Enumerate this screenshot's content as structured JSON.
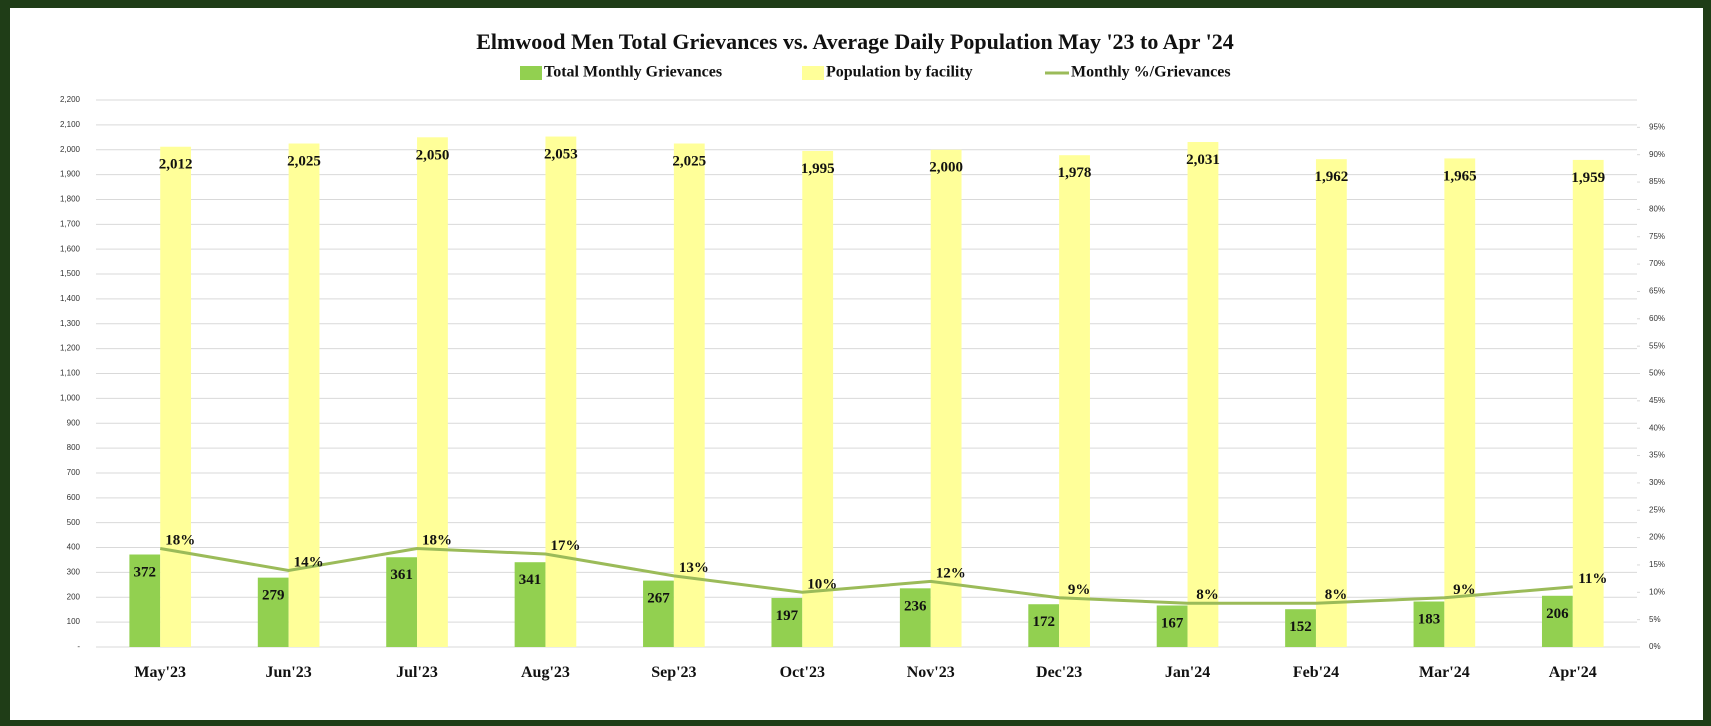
{
  "chart_data": {
    "type": "bar",
    "title": "Elmwood Men Total Grievances vs. Average Daily Population May '23 to Apr '24",
    "categories": [
      "May'23",
      "Jun'23",
      "Jul'23",
      "Aug'23",
      "Sep'23",
      "Oct'23",
      "Nov'23",
      "Dec'23",
      "Jan'24",
      "Feb'24",
      "Mar'24",
      "Apr'24"
    ],
    "series": [
      {
        "name": "Total Monthly Grievances",
        "type": "bar",
        "color": "#92d050",
        "values": [
          372,
          279,
          361,
          341,
          267,
          197,
          236,
          172,
          167,
          152,
          183,
          206
        ]
      },
      {
        "name": "Population by facility",
        "type": "bar",
        "color": "#ffff99",
        "values": [
          2012,
          2025,
          2050,
          2053,
          2025,
          1995,
          2000,
          1978,
          2031,
          1962,
          1965,
          1959
        ],
        "value_labels": [
          "2,012",
          "2,025",
          "2,050",
          "2,053",
          "2,025",
          "1,995",
          "2,000",
          "1,978",
          "2,031",
          "1,962",
          "1,965",
          "1,959"
        ]
      },
      {
        "name": "Monthly %/Grievances",
        "type": "line",
        "axis": "y2",
        "color": "#9bbb59",
        "values": [
          18,
          14,
          18,
          17,
          13,
          10,
          12,
          9,
          8,
          8,
          9,
          11
        ],
        "value_labels": [
          "18%",
          "14%",
          "18%",
          "17%",
          "13%",
          "10%",
          "12%",
          "9%",
          "8%",
          "8%",
          "9%",
          "11%"
        ]
      }
    ],
    "ylim": [
      0,
      2200
    ],
    "yticks": [
      {
        "value": 0,
        "label": "-"
      },
      100,
      200,
      300,
      400,
      500,
      600,
      700,
      800,
      900,
      {
        "value": 1000,
        "label": "1,000"
      },
      {
        "value": 1100,
        "label": "1,100"
      },
      {
        "value": 1200,
        "label": "1,200"
      },
      {
        "value": 1300,
        "label": "1,300"
      },
      {
        "value": 1400,
        "label": "1,400"
      },
      {
        "value": 1500,
        "label": "1,500"
      },
      {
        "value": 1600,
        "label": "1,600"
      },
      {
        "value": 1700,
        "label": "1,700"
      },
      {
        "value": 1800,
        "label": "1,800"
      },
      {
        "value": 1900,
        "label": "1,900"
      },
      {
        "value": 2000,
        "label": "2,000"
      },
      {
        "value": 2100,
        "label": "2,100"
      },
      {
        "value": 2200,
        "label": "2,200"
      }
    ],
    "y2lim": [
      0,
      100
    ],
    "y2ticks": [
      {
        "value": 0,
        "label": "0%"
      },
      {
        "value": 5,
        "label": "5%"
      },
      {
        "value": 10,
        "label": "10%"
      },
      {
        "value": 15,
        "label": "15%"
      },
      {
        "value": 20,
        "label": "20%"
      },
      {
        "value": 25,
        "label": "25%"
      },
      {
        "value": 30,
        "label": "30%"
      },
      {
        "value": 35,
        "label": "35%"
      },
      {
        "value": 40,
        "label": "40%"
      },
      {
        "value": 45,
        "label": "45%"
      },
      {
        "value": 50,
        "label": "50%"
      },
      {
        "value": 55,
        "label": "55%"
      },
      {
        "value": 60,
        "label": "60%"
      },
      {
        "value": 65,
        "label": "65%"
      },
      {
        "value": 70,
        "label": "70%"
      },
      {
        "value": 75,
        "label": "75%"
      },
      {
        "value": 80,
        "label": "80%"
      },
      {
        "value": 85,
        "label": "85%"
      },
      {
        "value": 90,
        "label": "90%"
      },
      {
        "value": 95,
        "label": "95%"
      }
    ],
    "grid": true,
    "legend": "top"
  }
}
